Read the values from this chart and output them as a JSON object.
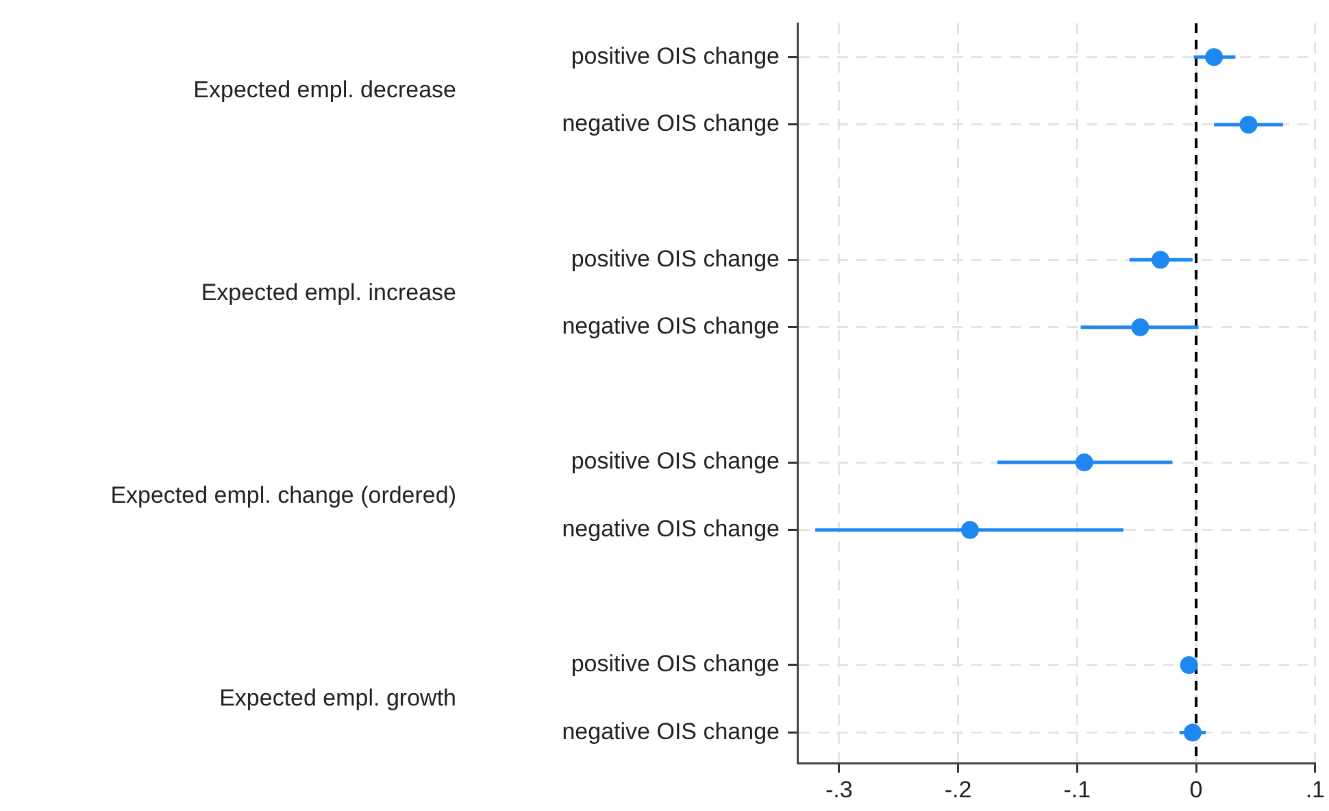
{
  "chart_data": {
    "type": "scatter",
    "orientation": "horizontal",
    "marker": "circle",
    "grid": true,
    "color": "#1e88f0",
    "categories": [
      "positive OIS change",
      "negative OIS change",
      "positive OIS change",
      "negative OIS change",
      "positive OIS change",
      "negative OIS change",
      "positive OIS change",
      "negative OIS change"
    ],
    "values": [
      0.015,
      0.044,
      -0.03,
      -0.047,
      -0.094,
      -0.19,
      -0.006,
      -0.003
    ],
    "errors": [
      [
        -0.002,
        0.033
      ],
      [
        0.015,
        0.073
      ],
      [
        -0.056,
        -0.003
      ],
      [
        -0.097,
        0.002
      ],
      [
        -0.167,
        -0.02
      ],
      [
        -0.32,
        -0.061
      ],
      null,
      [
        -0.014,
        0.008
      ]
    ],
    "xlim": [
      -0.335,
      0.1
    ],
    "xticks": [
      {
        "value": -0.3,
        "label": "-.3"
      },
      {
        "value": -0.2,
        "label": "-.2"
      },
      {
        "value": -0.1,
        "label": "-.1"
      },
      0,
      {
        "value": 0.1,
        "label": ".1"
      }
    ],
    "ref_lines": [
      {
        "axis": "x",
        "value": 0,
        "color": "#000000",
        "line_style": "dashed"
      }
    ],
    "annotations": [
      "Expected empl. decrease",
      "Expected empl. increase",
      "Expected empl. change (ordered)",
      "Expected empl. growth"
    ]
  }
}
